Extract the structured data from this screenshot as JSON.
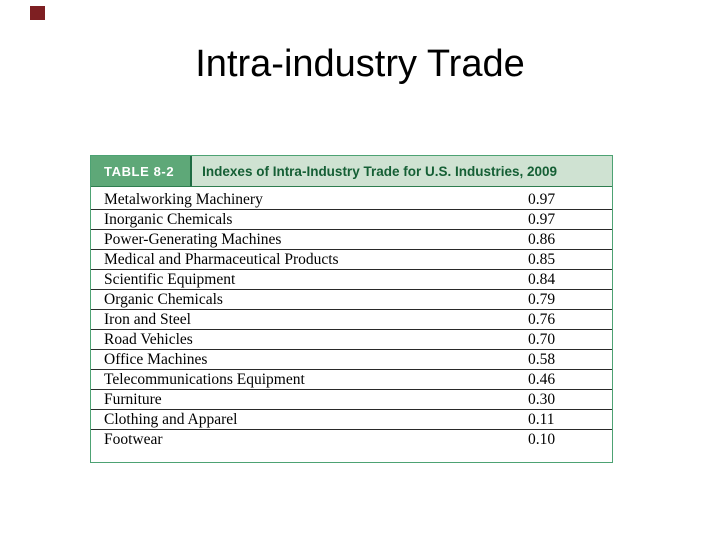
{
  "slide": {
    "title": "Intra-industry Trade",
    "accent_square_color": "#7e1f22"
  },
  "table": {
    "label": "TABLE 8-2",
    "caption": "Indexes of Intra-Industry Trade for U.S. Industries, 2009",
    "colors": {
      "header_bg": "#cfe2d2",
      "label_bg": "#5ea878",
      "caption_text": "#155f35",
      "border": "#4da273"
    },
    "rows": [
      {
        "industry": "Metalworking Machinery",
        "value": "0.97"
      },
      {
        "industry": "Inorganic Chemicals",
        "value": "0.97"
      },
      {
        "industry": "Power-Generating Machines",
        "value": "0.86"
      },
      {
        "industry": "Medical and Pharmaceutical Products",
        "value": "0.85"
      },
      {
        "industry": "Scientific Equipment",
        "value": "0.84"
      },
      {
        "industry": "Organic Chemicals",
        "value": "0.79"
      },
      {
        "industry": "Iron and Steel",
        "value": "0.76"
      },
      {
        "industry": "Road Vehicles",
        "value": "0.70"
      },
      {
        "industry": "Office Machines",
        "value": "0.58"
      },
      {
        "industry": "Telecommunications Equipment",
        "value": "0.46"
      },
      {
        "industry": "Furniture",
        "value": "0.30"
      },
      {
        "industry": "Clothing and Apparel",
        "value": "0.11"
      },
      {
        "industry": "Footwear",
        "value": "0.10"
      }
    ]
  }
}
